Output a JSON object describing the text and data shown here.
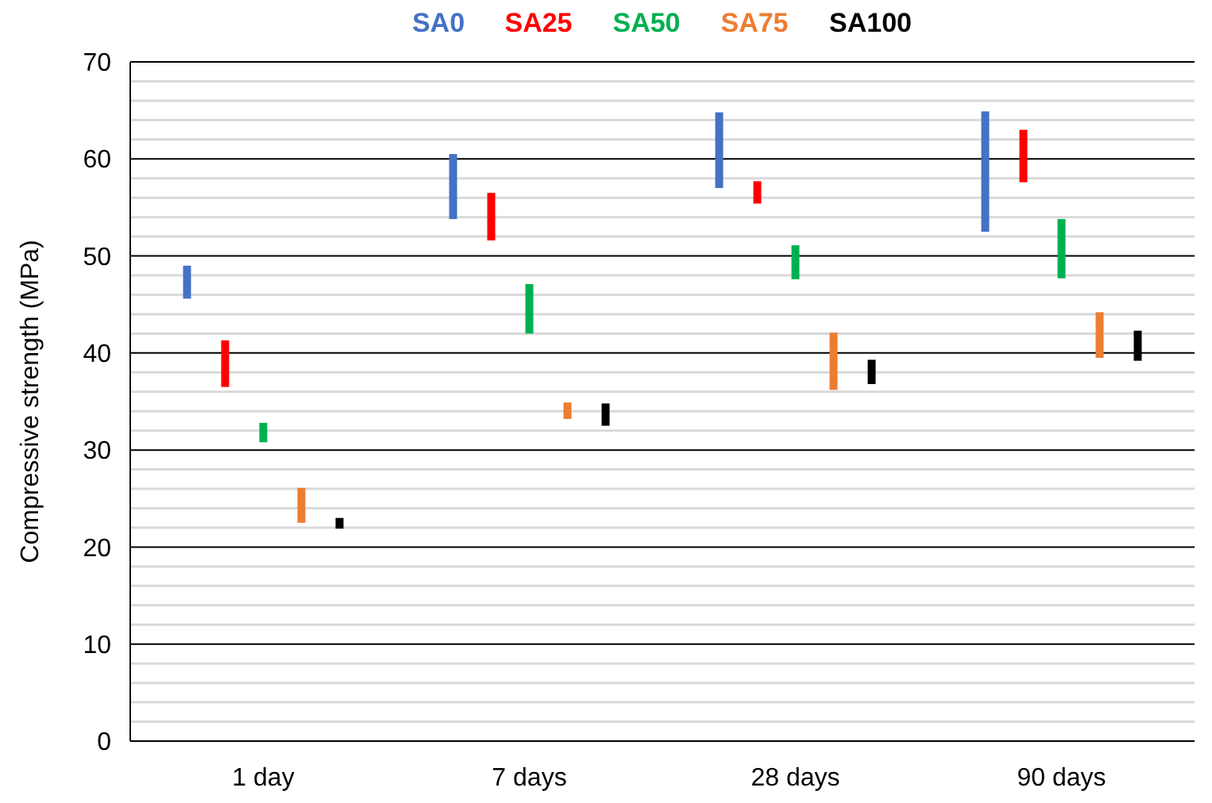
{
  "chart_data": {
    "type": "bar",
    "ylabel": "Compressive strength (MPa)",
    "categories": [
      "1 day",
      "7 days",
      "28 days",
      "90 days"
    ],
    "series": [
      {
        "name": "SA0",
        "color": "#4472c4",
        "base": [
          45.6,
          53.8,
          57.0,
          52.5
        ],
        "values": [
          3.4,
          6.7,
          7.8,
          12.4
        ]
      },
      {
        "name": "SA25",
        "color": "#ff0000",
        "base": [
          36.5,
          51.6,
          55.4,
          57.6
        ],
        "values": [
          4.8,
          4.9,
          2.3,
          5.4
        ]
      },
      {
        "name": "SA50",
        "color": "#00b050",
        "base": [
          30.8,
          42.0,
          47.6,
          47.7
        ],
        "values": [
          2.0,
          5.1,
          3.5,
          6.1
        ]
      },
      {
        "name": "SA75",
        "color": "#ed7d31",
        "base": [
          22.5,
          33.2,
          36.2,
          39.5
        ],
        "values": [
          3.6,
          1.7,
          5.9,
          4.7
        ]
      },
      {
        "name": "SA100",
        "color": "#000000",
        "base": [
          21.9,
          32.5,
          36.8,
          39.2
        ],
        "values": [
          1.1,
          2.3,
          2.5,
          3.1
        ]
      }
    ],
    "ylim": [
      0,
      70
    ],
    "yticks": [
      0,
      10,
      20,
      30,
      40,
      50,
      60,
      70
    ],
    "grid": "y",
    "legend": "top"
  }
}
